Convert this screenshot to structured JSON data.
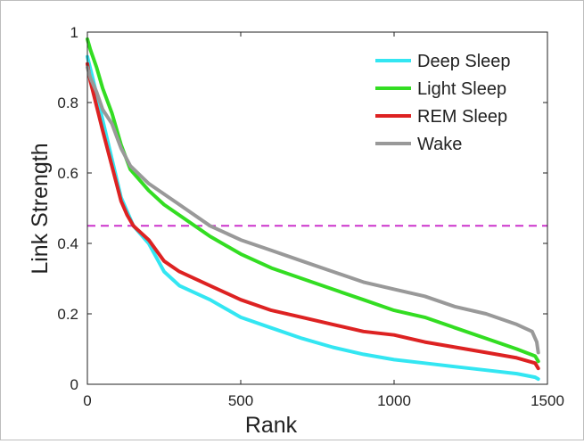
{
  "chart_data": {
    "type": "line",
    "title": "",
    "xlabel": "Rank",
    "ylabel": "Link Strength",
    "xlim": [
      0,
      1500
    ],
    "ylim": [
      0,
      1
    ],
    "xticks": [
      0,
      500,
      1000,
      1500
    ],
    "xtick_labels": [
      "0",
      "500",
      "1000",
      "1500"
    ],
    "yticks": [
      0,
      0.2,
      0.4,
      0.6,
      0.8,
      1
    ],
    "ytick_labels": [
      "0",
      "0.2",
      "0.4",
      "0.6",
      "0.8",
      "1"
    ],
    "grid": false,
    "legend_position": "top-right",
    "threshold": {
      "value": 0.45,
      "color": "#cc33cc",
      "style": "dashed"
    },
    "series": [
      {
        "name": "Deep Sleep",
        "color": "#33e6f2",
        "x": [
          0,
          20,
          50,
          80,
          110,
          150,
          200,
          250,
          300,
          400,
          500,
          600,
          700,
          800,
          900,
          1000,
          1100,
          1200,
          1300,
          1400,
          1460,
          1470
        ],
        "y": [
          0.93,
          0.86,
          0.75,
          0.64,
          0.53,
          0.45,
          0.4,
          0.32,
          0.28,
          0.24,
          0.19,
          0.16,
          0.13,
          0.105,
          0.085,
          0.07,
          0.06,
          0.05,
          0.04,
          0.03,
          0.02,
          0.015
        ]
      },
      {
        "name": "Light Sleep",
        "color": "#33dd22",
        "x": [
          0,
          10,
          30,
          50,
          80,
          110,
          140,
          200,
          250,
          300,
          400,
          500,
          600,
          700,
          800,
          900,
          1000,
          1100,
          1200,
          1300,
          1400,
          1460,
          1470
        ],
        "y": [
          0.98,
          0.95,
          0.9,
          0.84,
          0.77,
          0.68,
          0.61,
          0.55,
          0.51,
          0.48,
          0.42,
          0.37,
          0.33,
          0.3,
          0.27,
          0.24,
          0.21,
          0.19,
          0.16,
          0.13,
          0.1,
          0.08,
          0.065
        ]
      },
      {
        "name": "REM Sleep",
        "color": "#dd2222",
        "x": [
          0,
          10,
          30,
          50,
          80,
          110,
          130,
          150,
          200,
          250,
          300,
          400,
          500,
          600,
          700,
          800,
          900,
          1000,
          1100,
          1200,
          1300,
          1400,
          1460,
          1470
        ],
        "y": [
          0.91,
          0.86,
          0.79,
          0.72,
          0.62,
          0.52,
          0.48,
          0.45,
          0.41,
          0.35,
          0.32,
          0.28,
          0.24,
          0.21,
          0.19,
          0.17,
          0.15,
          0.14,
          0.12,
          0.105,
          0.09,
          0.075,
          0.06,
          0.045
        ]
      },
      {
        "name": "Wake",
        "color": "#999999",
        "x": [
          0,
          10,
          30,
          50,
          80,
          110,
          140,
          200,
          300,
          400,
          500,
          600,
          700,
          800,
          900,
          1000,
          1100,
          1200,
          1300,
          1400,
          1450,
          1465,
          1470
        ],
        "y": [
          0.9,
          0.87,
          0.83,
          0.78,
          0.74,
          0.67,
          0.62,
          0.57,
          0.51,
          0.45,
          0.41,
          0.38,
          0.35,
          0.32,
          0.29,
          0.27,
          0.25,
          0.22,
          0.2,
          0.17,
          0.15,
          0.12,
          0.09
        ]
      }
    ]
  }
}
